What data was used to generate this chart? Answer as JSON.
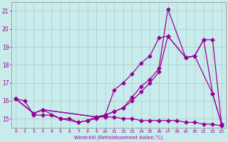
{
  "xlabel": "Windchill (Refroidissement éolien,°C)",
  "bg_color": "#c8ecec",
  "grid_color": "#b0c8c8",
  "line_color": "#990099",
  "xlim": [
    -0.5,
    23.5
  ],
  "ylim": [
    14.5,
    21.5
  ],
  "yticks": [
    15,
    16,
    17,
    18,
    19,
    20,
    21
  ],
  "xticks": [
    0,
    1,
    2,
    3,
    4,
    5,
    6,
    7,
    8,
    9,
    10,
    11,
    12,
    13,
    14,
    15,
    16,
    17,
    18,
    19,
    20,
    21,
    22,
    23
  ],
  "line1_x": [
    0,
    1,
    2,
    3,
    4,
    5,
    6,
    7,
    8,
    9,
    10,
    11,
    12,
    13,
    14,
    15,
    16,
    17,
    18,
    19,
    20,
    21,
    22,
    23
  ],
  "line1_y": [
    16.1,
    16.0,
    15.2,
    15.2,
    15.2,
    15.0,
    15.0,
    14.8,
    14.9,
    15.1,
    15.1,
    15.1,
    15.0,
    15.0,
    14.9,
    14.9,
    14.9,
    14.9,
    14.9,
    14.8,
    14.8,
    14.7,
    14.7,
    14.6
  ],
  "line2_x": [
    0,
    2,
    3,
    9,
    10,
    11,
    12,
    13,
    14,
    15,
    16,
    17,
    19,
    20,
    21,
    22,
    23
  ],
  "line2_y": [
    16.1,
    15.3,
    15.5,
    15.1,
    15.2,
    16.6,
    17.0,
    17.5,
    18.1,
    18.5,
    19.5,
    19.6,
    18.4,
    18.5,
    19.4,
    19.4,
    14.7
  ],
  "line3_x": [
    0,
    2,
    3,
    5,
    7,
    8,
    9,
    10,
    11,
    12,
    13,
    14,
    15,
    16,
    17,
    19,
    20,
    22,
    23
  ],
  "line3_y": [
    16.1,
    15.3,
    15.5,
    15.0,
    14.8,
    14.9,
    15.0,
    15.2,
    15.4,
    15.6,
    16.2,
    16.8,
    17.2,
    17.8,
    21.1,
    18.4,
    18.5,
    16.4,
    14.7
  ],
  "line4_x": [
    0,
    2,
    3,
    9,
    10,
    11,
    12,
    13,
    14,
    15,
    16,
    17,
    19,
    20,
    21,
    22,
    23
  ],
  "line4_y": [
    16.1,
    15.3,
    15.5,
    15.1,
    15.2,
    15.4,
    15.6,
    16.0,
    16.5,
    17.0,
    17.6,
    19.6,
    18.4,
    18.5,
    19.4,
    16.4,
    14.7
  ]
}
